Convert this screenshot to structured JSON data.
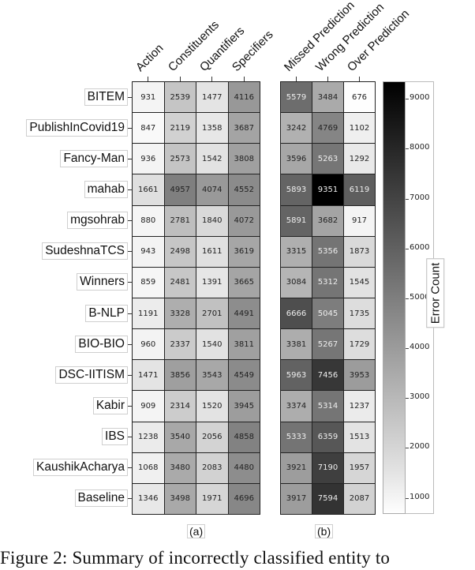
{
  "figure": {
    "caption": "Figure 2:  Summary of incorrectly classified entity to",
    "panel_a_label": "(a)",
    "panel_b_label": "(b)",
    "colorbar_title": "Error Count",
    "colorbar_ticks": [
      "1000",
      "2000",
      "3000",
      "4000",
      "5000",
      "6000",
      "7000",
      "8000",
      "9000"
    ]
  },
  "chart_data": [
    {
      "type": "heatmap",
      "title": "(a)",
      "columns": [
        "Action",
        "Constituents",
        "Quantifiers",
        "Specifiers"
      ],
      "rows": [
        "BITEM",
        "PublishInCovid19",
        "Fancy-Man",
        "mahab",
        "mgsohrab",
        "SudeshnaTCS",
        "Winners",
        "B-NLP",
        "BIO-BIO",
        "DSC-IITISM",
        "Kabir",
        "IBS",
        "KaushikAcharya",
        "Baseline"
      ],
      "values": [
        [
          931,
          2539,
          1477,
          4116
        ],
        [
          847,
          2119,
          1358,
          3687
        ],
        [
          936,
          2573,
          1542,
          3808
        ],
        [
          1661,
          4957,
          4074,
          4552
        ],
        [
          880,
          2781,
          1840,
          4072
        ],
        [
          943,
          2498,
          1611,
          3619
        ],
        [
          859,
          2481,
          1391,
          3665
        ],
        [
          1191,
          3328,
          2701,
          4491
        ],
        [
          960,
          2337,
          1540,
          3811
        ],
        [
          1471,
          3856,
          3543,
          4549
        ],
        [
          909,
          2314,
          1520,
          3945
        ],
        [
          1238,
          3540,
          2056,
          4858
        ],
        [
          1068,
          3480,
          2083,
          4480
        ],
        [
          1346,
          3498,
          1971,
          4696
        ]
      ],
      "colormap": "Greys",
      "colorbar_label": "Error Count",
      "vlim": [
        676,
        9351
      ]
    },
    {
      "type": "heatmap",
      "title": "(b)",
      "columns": [
        "Missed Prediction",
        "Wrong Prediction",
        "Over Prediction"
      ],
      "rows": [
        "BITEM",
        "PublishInCovid19",
        "Fancy-Man",
        "mahab",
        "mgsohrab",
        "SudeshnaTCS",
        "Winners",
        "B-NLP",
        "BIO-BIO",
        "DSC-IITISM",
        "Kabir",
        "IBS",
        "KaushikAcharya",
        "Baseline"
      ],
      "values": [
        [
          5579,
          3484,
          676
        ],
        [
          3242,
          4769,
          1102
        ],
        [
          3596,
          5263,
          1292
        ],
        [
          5893,
          9351,
          6119
        ],
        [
          5891,
          3682,
          917
        ],
        [
          3315,
          5356,
          1873
        ],
        [
          3084,
          5312,
          1545
        ],
        [
          6666,
          5045,
          1735
        ],
        [
          3381,
          5267,
          1729
        ],
        [
          5963,
          7456,
          3953
        ],
        [
          3374,
          5314,
          1237
        ],
        [
          5333,
          6359,
          1513
        ],
        [
          3921,
          7190,
          1957
        ],
        [
          3917,
          7594,
          2087
        ]
      ],
      "colormap": "Greys",
      "colorbar_label": "Error Count",
      "colorbar_ticks": [
        1000,
        2000,
        3000,
        4000,
        5000,
        6000,
        7000,
        8000,
        9000
      ],
      "vlim": [
        676,
        9351
      ]
    }
  ]
}
